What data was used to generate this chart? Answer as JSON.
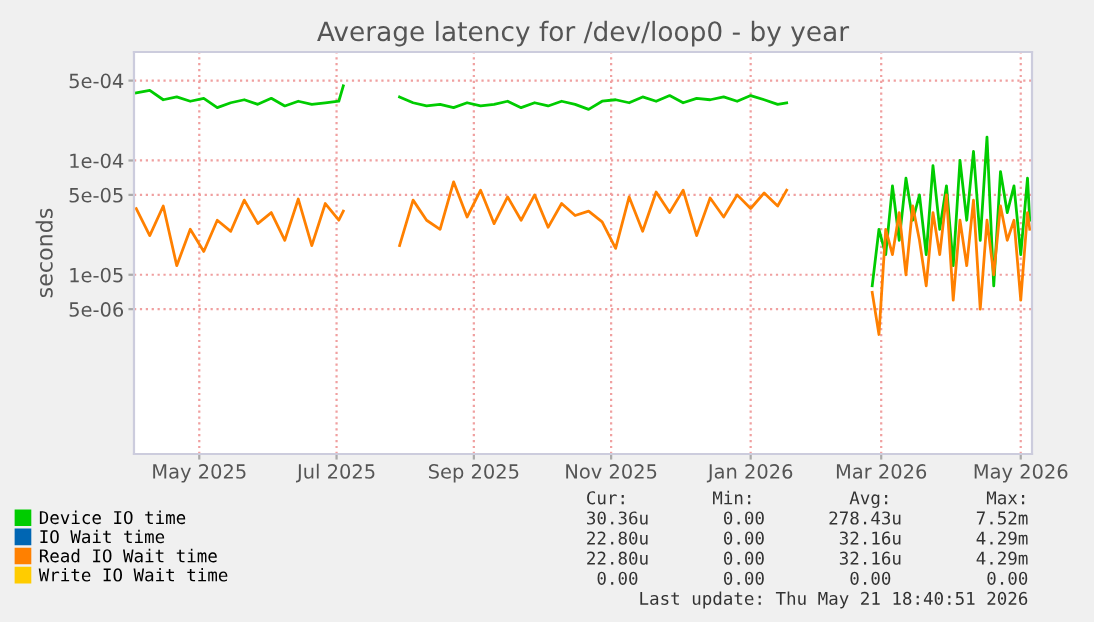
{
  "chart_data": {
    "type": "line",
    "title": "Average latency for /dev/loop0 - by year",
    "ylabel": "seconds",
    "log": "y",
    "grid": true,
    "legend": "bottom",
    "marker": "none",
    "line_style": "solid",
    "ylim": [
      2.7e-07,
      0.00089
    ],
    "yticks": [
      {
        "value": 0.0005,
        "label": "5e-04"
      },
      {
        "value": 0.0001,
        "label": "1e-04"
      },
      {
        "value": 5e-05,
        "label": "5e-05"
      },
      {
        "value": 1e-05,
        "label": "1e-05"
      },
      {
        "value": 5e-06,
        "label": "5e-06"
      }
    ],
    "xlim": [
      "2025-04-17",
      "2026-05-21"
    ],
    "xticks": [
      {
        "value": "2025-05-16",
        "label": "May 2025"
      },
      {
        "value": "2025-07-16",
        "label": "Jul 2025"
      },
      {
        "value": "2025-09-15",
        "label": "Sep 2025"
      },
      {
        "value": "2025-11-15",
        "label": "Nov 2025"
      },
      {
        "value": "2026-01-16",
        "label": "Jan 2026"
      },
      {
        "value": "2026-03-15",
        "label": "Mar 2026"
      },
      {
        "value": "2026-05-16",
        "label": "May 2026"
      }
    ],
    "x": [
      "2025-04-18",
      "2025-04-24",
      "2025-04-30",
      "2025-05-06",
      "2025-05-12",
      "2025-05-18",
      "2025-05-24",
      "2025-05-30",
      "2025-06-05",
      "2025-06-11",
      "2025-06-17",
      "2025-06-23",
      "2025-06-29",
      "2025-07-05",
      "2025-07-11",
      "2025-07-17",
      "2025-07-19",
      "2025-07-25",
      "2025-08-13",
      "2025-08-19",
      "2025-08-25",
      "2025-08-31",
      "2025-09-06",
      "2025-09-12",
      "2025-09-18",
      "2025-09-24",
      "2025-09-30",
      "2025-10-06",
      "2025-10-12",
      "2025-10-18",
      "2025-10-24",
      "2025-10-30",
      "2025-11-05",
      "2025-11-11",
      "2025-11-17",
      "2025-11-23",
      "2025-11-29",
      "2025-12-05",
      "2025-12-11",
      "2025-12-17",
      "2025-12-23",
      "2025-12-29",
      "2026-01-04",
      "2026-01-10",
      "2026-01-16",
      "2026-01-22",
      "2026-01-28",
      "2026-02-01",
      "2026-02-10",
      "2026-03-11",
      "2026-03-14",
      "2026-03-17",
      "2026-03-20",
      "2026-03-23",
      "2026-03-26",
      "2026-03-29",
      "2026-04-01",
      "2026-04-04",
      "2026-04-07",
      "2026-04-10",
      "2026-04-13",
      "2026-04-16",
      "2026-04-19",
      "2026-04-22",
      "2026-04-25",
      "2026-04-28",
      "2026-05-01",
      "2026-05-04",
      "2026-05-07",
      "2026-05-10",
      "2026-05-13",
      "2026-05-16",
      "2026-05-19",
      "2026-05-20"
    ],
    "series": [
      {
        "name": "Device IO time",
        "color": "#00cc00",
        "values": [
          0.00039,
          0.00041,
          0.00034,
          0.00036,
          0.00033,
          0.00035,
          0.00029,
          0.00032,
          0.00034,
          0.00031,
          0.00035,
          0.0003,
          0.00033,
          0.00031,
          0.00032,
          0.00033,
          0.00045,
          null,
          0.00036,
          0.00032,
          0.0003,
          0.00031,
          0.00029,
          0.00032,
          0.0003,
          0.00031,
          0.00033,
          0.00029,
          0.00032,
          0.0003,
          0.00033,
          0.00031,
          0.00028,
          0.00033,
          0.00034,
          0.00032,
          0.00036,
          0.00033,
          0.00037,
          0.00032,
          0.00035,
          0.00034,
          0.00036,
          0.00033,
          0.00037,
          0.00034,
          0.00031,
          0.00032,
          null,
          8e-06,
          2.5e-05,
          1.5e-05,
          6e-05,
          2e-05,
          7e-05,
          3e-05,
          5e-05,
          1.5e-05,
          9e-05,
          2.5e-05,
          6e-05,
          1.2e-05,
          0.0001,
          3e-05,
          0.00012,
          2e-05,
          0.00016,
          8e-06,
          8e-05,
          3.5e-05,
          6e-05,
          1.5e-05,
          7e-05,
          3e-05
        ]
      },
      {
        "name": "IO Wait time",
        "color": "#0066b3",
        "values": [
          null,
          null,
          null,
          null,
          null,
          null,
          null,
          null,
          null,
          null,
          null,
          null,
          null,
          null,
          null,
          null,
          null,
          null,
          null,
          null,
          null,
          null,
          null,
          null,
          null,
          null,
          null,
          null,
          null,
          null,
          null,
          null,
          null,
          null,
          null,
          null,
          null,
          null,
          null,
          null,
          null,
          null,
          null,
          null,
          null,
          null,
          null,
          null,
          null,
          null,
          null,
          null,
          null,
          null,
          null,
          null,
          null,
          null,
          null,
          null,
          null,
          null,
          null,
          null,
          null,
          null,
          null,
          null,
          null,
          null,
          null,
          null,
          null,
          null
        ]
      },
      {
        "name": "Read IO Wait time",
        "color": "#ff8000",
        "values": [
          3.8e-05,
          2.2e-05,
          4e-05,
          1.2e-05,
          2.5e-05,
          1.6e-05,
          3e-05,
          2.4e-05,
          4.5e-05,
          2.8e-05,
          3.5e-05,
          2e-05,
          4.6e-05,
          1.8e-05,
          4.2e-05,
          3e-05,
          3.6e-05,
          null,
          1.8e-05,
          4.5e-05,
          3e-05,
          2.5e-05,
          6.5e-05,
          3.2e-05,
          5.5e-05,
          2.8e-05,
          4.8e-05,
          3e-05,
          5e-05,
          2.6e-05,
          4.2e-05,
          3.3e-05,
          3.6e-05,
          2.9e-05,
          1.7e-05,
          4.8e-05,
          2.4e-05,
          5.3e-05,
          3.5e-05,
          5.5e-05,
          2.2e-05,
          4.7e-05,
          3.2e-05,
          5e-05,
          3.8e-05,
          5.2e-05,
          4e-05,
          5.5e-05,
          null,
          7e-06,
          3e-06,
          2.5e-05,
          1.5e-05,
          3.5e-05,
          1e-05,
          4e-05,
          2e-05,
          8e-06,
          3.5e-05,
          1.5e-05,
          5e-05,
          6e-06,
          3e-05,
          1.2e-05,
          4.5e-05,
          5e-06,
          3e-05,
          1e-05,
          4e-05,
          2e-05,
          3e-05,
          6e-06,
          3.5e-05,
          2.5e-05
        ]
      },
      {
        "name": "Write IO Wait time",
        "color": "#ffcc00",
        "values": [
          null,
          null,
          null,
          null,
          null,
          null,
          null,
          null,
          null,
          null,
          null,
          null,
          null,
          null,
          null,
          null,
          null,
          null,
          null,
          null,
          null,
          null,
          null,
          null,
          null,
          null,
          null,
          null,
          null,
          null,
          null,
          null,
          null,
          null,
          null,
          null,
          null,
          null,
          null,
          null,
          null,
          null,
          null,
          null,
          null,
          null,
          null,
          null,
          null,
          null,
          null,
          null,
          null,
          null,
          null,
          null,
          null,
          null,
          null,
          null,
          null,
          null,
          null,
          null,
          null,
          null,
          null,
          null,
          null,
          null,
          null,
          null,
          null,
          null
        ]
      }
    ],
    "annotations": [
      "Cur:        Min:         Avg:         Max:",
      "30.36u       0.00      278.43u       7.52m",
      "22.80u       0.00       32.16u       4.29m",
      "22.80u       0.00       32.16u       4.29m",
      " 0.00        0.00        0.00         0.00",
      "Last update: Thu May 21 18:40:51 2026"
    ]
  }
}
